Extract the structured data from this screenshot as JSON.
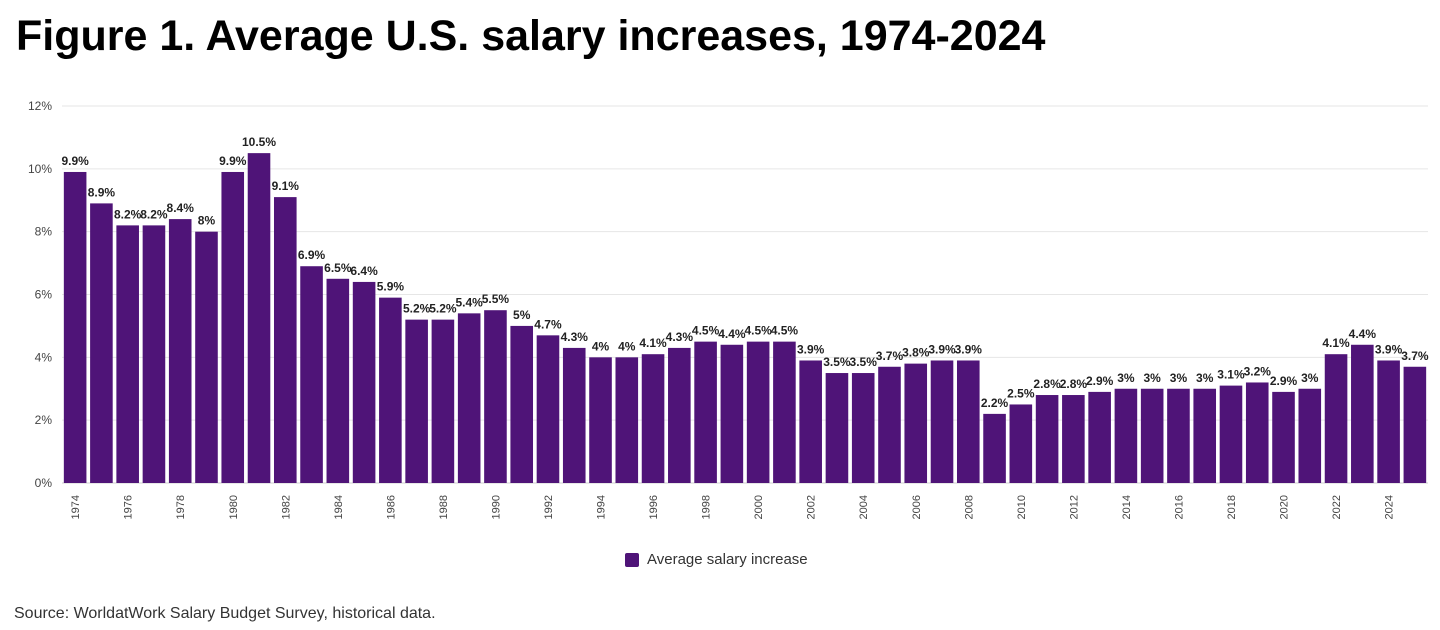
{
  "page_title": "Figure 1. Average U.S. salary increases, 1974-2024",
  "source": "Source: WorldatWork Salary Budget Survey, historical data.",
  "colors": {
    "bar": "#4f1478",
    "grid": "#e6e6e6",
    "axis_text": "#444444",
    "label_text": "#222222"
  },
  "chart_data": {
    "type": "bar",
    "title": "Figure 1. Average U.S. salary increases, 1974-2024",
    "xlabel": "",
    "ylabel": "",
    "ylim": [
      0,
      12
    ],
    "y_ticks": [
      "0%",
      "2%",
      "4%",
      "6%",
      "8%",
      "10%",
      "12%"
    ],
    "y_tick_values": [
      0,
      2,
      4,
      6,
      8,
      10,
      12
    ],
    "grid": true,
    "legend": "bottom-center",
    "categories": [
      "1974",
      "1975",
      "1976",
      "1977",
      "1978",
      "1979",
      "1980",
      "1981",
      "1982",
      "1983",
      "1984",
      "1985",
      "1986",
      "1987",
      "1988",
      "1989",
      "1990",
      "1991",
      "1992",
      "1993",
      "1994",
      "1995",
      "1996",
      "1997",
      "1998",
      "1999",
      "2000",
      "2001",
      "2002",
      "2003",
      "2004",
      "2005",
      "2006",
      "2007",
      "2008",
      "2009",
      "2010",
      "2011",
      "2012",
      "2013",
      "2014",
      "2015",
      "2016",
      "2017",
      "2018",
      "2019",
      "2020",
      "2021",
      "2022",
      "2023",
      "2024",
      "2025"
    ],
    "x_tick_labels": [
      "1974",
      "",
      "1976",
      "",
      "1978",
      "",
      "1980",
      "",
      "1982",
      "",
      "1984",
      "",
      "1986",
      "",
      "1988",
      "",
      "1990",
      "",
      "1992",
      "",
      "1994",
      "",
      "1996",
      "",
      "1998",
      "",
      "2000",
      "",
      "2002",
      "",
      "2004",
      "",
      "2006",
      "",
      "2008",
      "",
      "2010",
      "",
      "2012",
      "",
      "2014",
      "",
      "2016",
      "",
      "2018",
      "",
      "2020",
      "",
      "2022",
      "",
      "2024",
      ""
    ],
    "series": [
      {
        "name": "Average salary increase",
        "values": [
          9.9,
          8.9,
          8.2,
          8.2,
          8.4,
          8,
          9.9,
          10.5,
          9.1,
          6.9,
          6.5,
          6.4,
          5.9,
          5.2,
          5.2,
          5.4,
          5.5,
          5,
          4.7,
          4.3,
          4,
          4,
          4.1,
          4.3,
          4.5,
          4.4,
          4.5,
          4.5,
          3.9,
          3.5,
          3.5,
          3.7,
          3.8,
          3.9,
          3.9,
          2.2,
          2.5,
          2.8,
          2.8,
          2.9,
          3,
          3,
          3,
          3,
          3.1,
          3.2,
          2.9,
          3,
          4.1,
          4.4,
          3.9,
          3.7
        ],
        "labels": [
          "9.9%",
          "8.9%",
          "8.2%",
          "8.2%",
          "8.4%",
          "8%",
          "9.9%",
          "10.5%",
          "9.1%",
          "6.9%",
          "6.5%",
          "6.4%",
          "5.9%",
          "5.2%",
          "5.2%",
          "5.4%",
          "5.5%",
          "5%",
          "4.7%",
          "4.3%",
          "4%",
          "4%",
          "4.1%",
          "4.3%",
          "4.5%",
          "4.4%",
          "4.5%",
          "4.5%",
          "3.9%",
          "3.5%",
          "3.5%",
          "3.7%",
          "3.8%",
          "3.9%",
          "3.9%",
          "2.2%",
          "2.5%",
          "2.8%",
          "2.8%",
          "2.9%",
          "3%",
          "3%",
          "3%",
          "3%",
          "3.1%",
          "3.2%",
          "2.9%",
          "3%",
          "4.1%",
          "4.4%",
          "3.9%",
          "3.7%"
        ]
      }
    ]
  }
}
